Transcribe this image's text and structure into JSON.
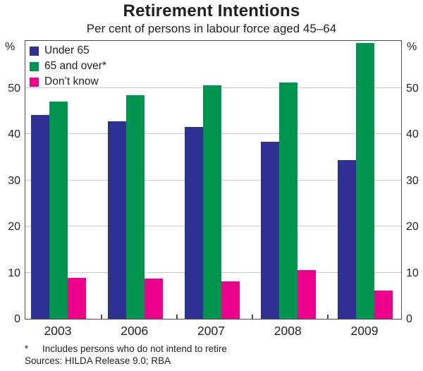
{
  "title": "Retirement Intentions",
  "subtitle": "Per cent of persons in labour force aged 45–64",
  "axis": {
    "unit": "%",
    "ticks": [
      0,
      10,
      20,
      30,
      40,
      50
    ]
  },
  "footnote": {
    "marker": "*",
    "text": "Includes persons who do not intend to retire"
  },
  "sources": "Sources: HILDA Release 9.0; RBA",
  "colors": {
    "under_65": "#2e3192",
    "65_and_over": "#009650",
    "dont_know": "#ec008c",
    "gridline": "#c9c9c9",
    "frame": "#4d4d4f"
  },
  "chart_data": {
    "type": "bar",
    "categories": [
      "2003",
      "2006",
      "2007",
      "2008",
      "2009"
    ],
    "series": [
      {
        "name": "Under 65",
        "color": "#2e3192",
        "values": [
          44.1,
          42.8,
          41.5,
          38.3,
          34.4
        ]
      },
      {
        "name": "65 and over*",
        "color": "#009650",
        "values": [
          47.0,
          48.5,
          50.5,
          51.2,
          59.8
        ]
      },
      {
        "name": "Don’t know",
        "color": "#ec008c",
        "values": [
          8.9,
          8.7,
          8.1,
          10.6,
          6.1
        ]
      }
    ],
    "title": "Retirement Intentions",
    "subtitle": "Per cent of persons in labour force aged 45–64",
    "xlabel": "",
    "ylabel": "%",
    "ylim": [
      0,
      60.5
    ],
    "yticks": [
      0,
      10,
      20,
      30,
      40,
      50
    ],
    "grid": true,
    "legend_position": "top-left"
  }
}
